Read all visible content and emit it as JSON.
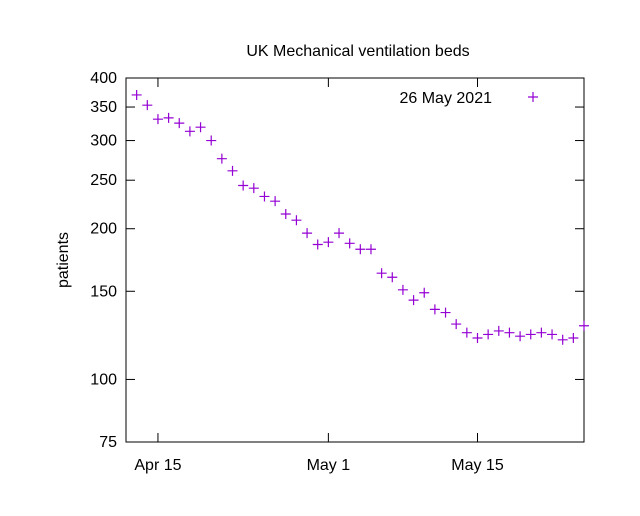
{
  "chart_data": {
    "type": "scatter",
    "title": "UK Mechanical ventilation beds",
    "xlabel": "",
    "ylabel": "patients",
    "y_scale": "log",
    "ylim": [
      75,
      400
    ],
    "xlim": [
      "2021-04-12",
      "2021-05-25"
    ],
    "y_ticks": [
      75,
      100,
      150,
      200,
      250,
      300,
      350,
      400
    ],
    "x_ticks": [
      {
        "date": "2021-04-15",
        "label": "Apr 15"
      },
      {
        "date": "2021-05-01",
        "label": "May 1"
      },
      {
        "date": "2021-05-15",
        "label": "May 15"
      }
    ],
    "grid": false,
    "legend_position": "top-right",
    "marker": "plus",
    "color": "#9400d3",
    "series": [
      {
        "name": "26 May 2021",
        "x": [
          "2021-04-13",
          "2021-04-14",
          "2021-04-15",
          "2021-04-16",
          "2021-04-17",
          "2021-04-18",
          "2021-04-19",
          "2021-04-20",
          "2021-04-21",
          "2021-04-22",
          "2021-04-23",
          "2021-04-24",
          "2021-04-25",
          "2021-04-26",
          "2021-04-27",
          "2021-04-28",
          "2021-04-29",
          "2021-04-30",
          "2021-05-01",
          "2021-05-02",
          "2021-05-03",
          "2021-05-04",
          "2021-05-05",
          "2021-05-06",
          "2021-05-07",
          "2021-05-08",
          "2021-05-09",
          "2021-05-10",
          "2021-05-11",
          "2021-05-12",
          "2021-05-13",
          "2021-05-14",
          "2021-05-15",
          "2021-05-16",
          "2021-05-17",
          "2021-05-18",
          "2021-05-19",
          "2021-05-20",
          "2021-05-21",
          "2021-05-22",
          "2021-05-23",
          "2021-05-24",
          "2021-05-25"
        ],
        "y": [
          370,
          353,
          331,
          333,
          325,
          313,
          319,
          300,
          276,
          261,
          244,
          241,
          232,
          227,
          214,
          208,
          196,
          186,
          188,
          196,
          187,
          182,
          182,
          163,
          160,
          151,
          144,
          149,
          138,
          136,
          129,
          124,
          121,
          123,
          125,
          124,
          122,
          123,
          124,
          123,
          120,
          121,
          128
        ]
      }
    ]
  }
}
